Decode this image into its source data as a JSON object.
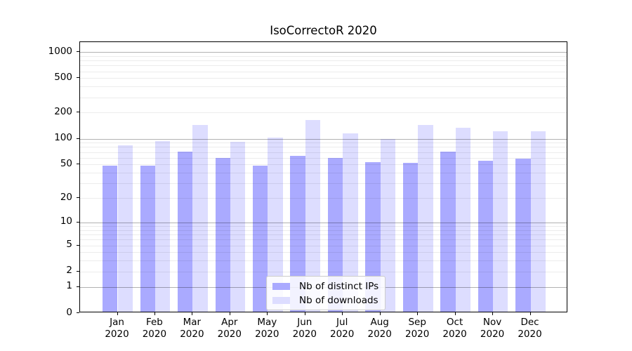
{
  "chart_data": {
    "type": "bar",
    "title": "IsoCorrectoR 2020",
    "categories": [
      "Jan\n2020",
      "Feb\n2020",
      "Mar\n2020",
      "Apr\n2020",
      "May\n2020",
      "Jun\n2020",
      "Jul\n2020",
      "Aug\n2020",
      "Sep\n2020",
      "Oct\n2020",
      "Nov\n2020",
      "Dec\n2020"
    ],
    "series": [
      {
        "name": "Nb of distinct IPs",
        "color": "#aaaaff",
        "values": [
          47,
          47,
          68,
          57,
          47,
          61,
          57,
          51,
          50,
          68,
          53,
          56
        ]
      },
      {
        "name": "Nb of downloads",
        "color": "#ddddff",
        "values": [
          80,
          91,
          140,
          88,
          100,
          158,
          110,
          96,
          140,
          130,
          118,
          118
        ]
      }
    ],
    "yscale": "log10(value+1)",
    "yticks": [
      1000,
      500,
      200,
      100,
      50,
      20,
      10,
      5,
      2,
      1,
      0
    ],
    "ytick_labels": [
      "1000",
      "500",
      "200",
      "100",
      "50",
      "20",
      "10",
      "5",
      "2",
      "1",
      "0"
    ],
    "ylim": [
      0,
      1090
    ],
    "xlabel": "",
    "ylabel": "",
    "grid": "horizontal",
    "legend_position": "lower center"
  },
  "legend": {
    "items": [
      {
        "label": "Nb of distinct IPs",
        "color": "#aaaaff"
      },
      {
        "label": "Nb of downloads",
        "color": "#ddddff"
      }
    ]
  },
  "colors": {
    "ips_bar": "#aaaaff",
    "downloads_bar": "#ddddff",
    "spine": "#000000",
    "major_grid": "#b3b3b3",
    "minor_grid": "#e9e9e9"
  }
}
